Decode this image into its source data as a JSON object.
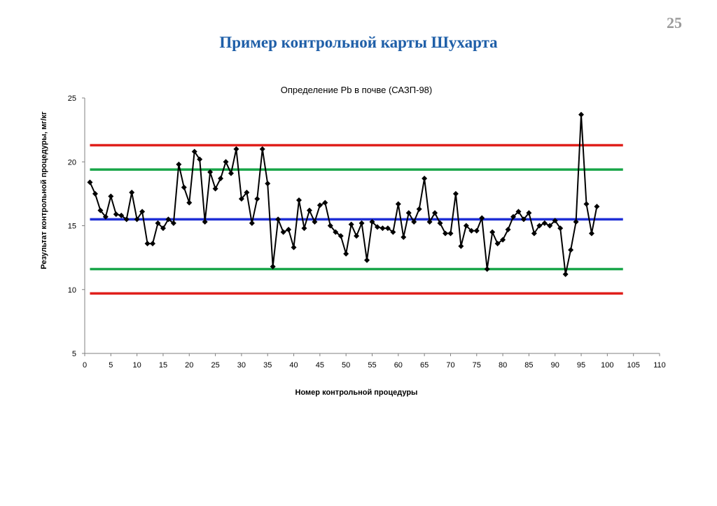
{
  "slide": {
    "number": "25",
    "title": "Пример контрольной карты Шухарта"
  },
  "chart_data": {
    "type": "line",
    "title": "Определение Pb в почве (САЗП-98)",
    "xlabel": "Номер контрольной процедуры",
    "ylabel": "Результат контрольной процедуры, мг/кг",
    "xlim": [
      0,
      110
    ],
    "ylim": [
      5,
      25
    ],
    "xticks": [
      0,
      5,
      10,
      15,
      20,
      25,
      30,
      35,
      40,
      45,
      50,
      55,
      60,
      65,
      70,
      75,
      80,
      85,
      90,
      95,
      100,
      105,
      110
    ],
    "yticks": [
      5,
      10,
      15,
      20,
      25
    ],
    "grid": false,
    "series": [
      {
        "color": "#000000",
        "marker": "diamond",
        "x": [
          1,
          2,
          3,
          4,
          5,
          6,
          7,
          8,
          9,
          10,
          11,
          12,
          13,
          14,
          15,
          16,
          17,
          18,
          19,
          20,
          21,
          22,
          23,
          24,
          25,
          26,
          27,
          28,
          29,
          30,
          31,
          32,
          33,
          34,
          35,
          36,
          37,
          38,
          39,
          40,
          41,
          42,
          43,
          44,
          45,
          46,
          47,
          48,
          49,
          50,
          51,
          52,
          53,
          54,
          55,
          56,
          57,
          58,
          59,
          60,
          61,
          62,
          63,
          64,
          65,
          66,
          67,
          68,
          69,
          70,
          71,
          72,
          73,
          74,
          75,
          76,
          77,
          78,
          79,
          80,
          81,
          82,
          83,
          84,
          85,
          86,
          87,
          88,
          89,
          90,
          91,
          92,
          93,
          94,
          95,
          96,
          97,
          98
        ],
        "y": [
          18.4,
          17.5,
          16.2,
          15.7,
          17.3,
          15.9,
          15.8,
          15.5,
          17.6,
          15.5,
          16.1,
          13.6,
          13.6,
          15.2,
          14.8,
          15.5,
          15.2,
          19.8,
          18.0,
          16.8,
          20.8,
          20.2,
          15.3,
          19.2,
          17.9,
          18.7,
          20.0,
          19.1,
          21.0,
          17.1,
          17.6,
          15.2,
          17.1,
          21.0,
          18.3,
          11.8,
          15.5,
          14.5,
          14.7,
          13.3,
          17.0,
          14.8,
          16.2,
          15.3,
          16.6,
          16.8,
          15.0,
          14.5,
          14.2,
          12.8,
          15.1,
          14.2,
          15.2,
          12.3,
          15.3,
          14.9,
          14.8,
          14.8,
          14.5,
          16.7,
          14.1,
          16.0,
          15.3,
          16.3,
          18.7,
          15.3,
          16.0,
          15.2,
          14.4,
          14.4,
          17.5,
          13.4,
          15.0,
          14.6,
          14.6,
          15.6,
          11.6,
          14.5,
          13.6,
          13.9,
          14.7,
          15.7,
          16.1,
          15.5,
          16.0,
          14.4,
          15.0,
          15.2,
          15.0,
          15.4,
          14.8,
          11.2,
          13.1,
          15.3,
          23.7,
          16.7,
          14.4,
          16.5
        ]
      }
    ],
    "control_lines": [
      {
        "kind": "upper-action-limit",
        "value": 21.3,
        "color": "#e0201c"
      },
      {
        "kind": "upper-warning-limit",
        "value": 19.4,
        "color": "#1aa64a"
      },
      {
        "kind": "center-line",
        "value": 15.5,
        "color": "#1f2fd6"
      },
      {
        "kind": "lower-warning-limit",
        "value": 11.6,
        "color": "#1aa64a"
      },
      {
        "kind": "lower-action-limit",
        "value": 9.7,
        "color": "#e0201c"
      }
    ],
    "control_lines_x_extent": [
      1,
      103
    ]
  }
}
